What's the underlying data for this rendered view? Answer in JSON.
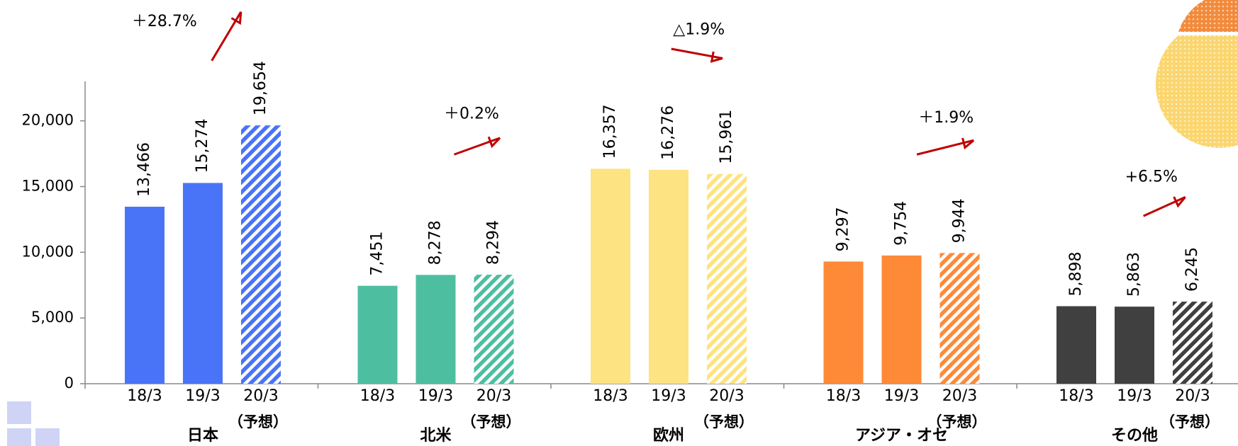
{
  "chart_data": {
    "type": "grouped_bar",
    "sub_categories": [
      "18/3",
      "19/3",
      "20/3"
    ],
    "forecast_note": "（予想）",
    "forecast_pattern": "hatch",
    "ylim": [
      0,
      23000
    ],
    "yticks": [
      {
        "value": 0,
        "label": "0"
      },
      {
        "value": 5000,
        "label": "5,000"
      },
      {
        "value": 10000,
        "label": "10,000"
      },
      {
        "value": 15000,
        "label": "15,000"
      },
      {
        "value": 20000,
        "label": "20,000"
      }
    ],
    "series": [
      {
        "name": "日本",
        "color": "#4a74f7",
        "values": [
          13466,
          15274,
          19654
        ],
        "value_labels": [
          "13,466",
          "15,274",
          "19,654"
        ],
        "annotation": "＋28.7%"
      },
      {
        "name": "北米",
        "color": "#4dbfa0",
        "values": [
          7451,
          8278,
          8294
        ],
        "value_labels": [
          "7,451",
          "8,278",
          "8,294"
        ],
        "annotation": "＋0.2%"
      },
      {
        "name": "欧州",
        "color": "#fde382",
        "values": [
          16357,
          16276,
          15961
        ],
        "value_labels": [
          "16,357",
          "16,276",
          "15,961"
        ],
        "annotation": "△1.9%"
      },
      {
        "name": "アジア・オセ",
        "color": "#fe8a38",
        "values": [
          9297,
          9754,
          9944
        ],
        "value_labels": [
          "9,297",
          "9,754",
          "9,944"
        ],
        "annotation": "＋1.9%"
      },
      {
        "name": "その他",
        "color": "#404040",
        "values": [
          5898,
          5863,
          6245
        ],
        "value_labels": [
          "5,898",
          "5,863",
          "6,245"
        ],
        "annotation": "+6.5%"
      }
    ]
  }
}
